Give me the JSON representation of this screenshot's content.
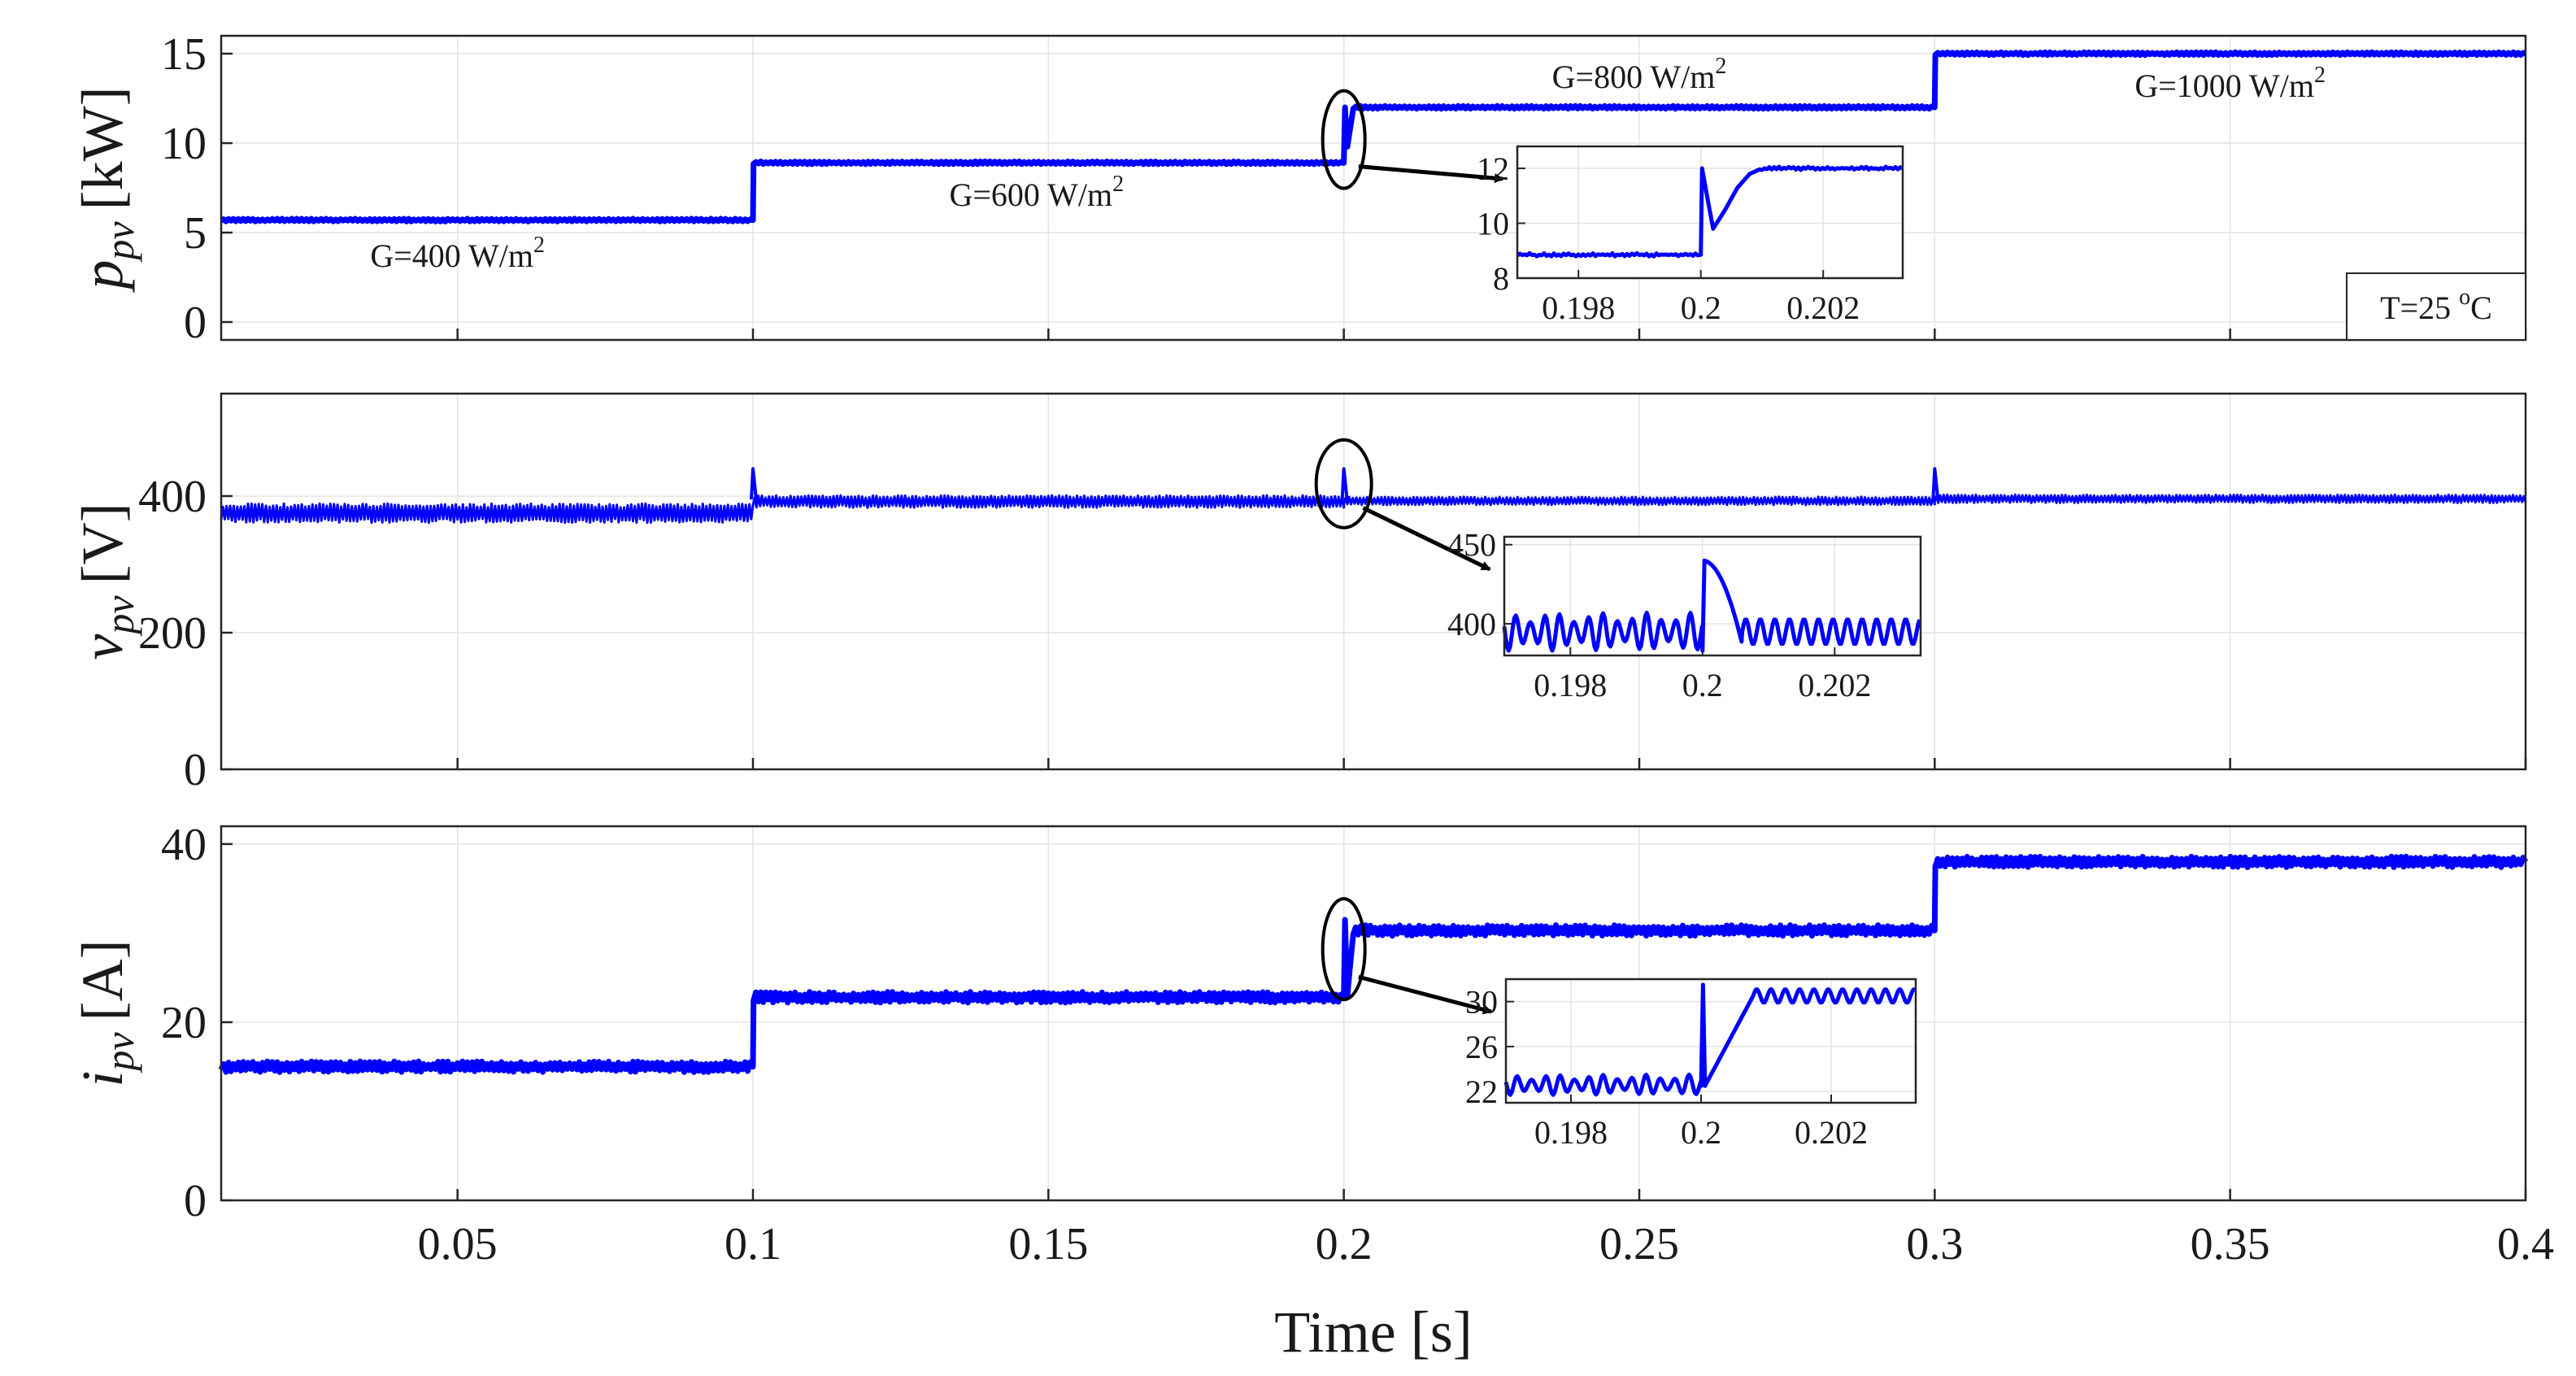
{
  "chart_data": [
    {
      "type": "line",
      "id": "power",
      "ylabel_symbol": "p",
      "ylabel_sub": "pv",
      "ylabel_unit": "[kW]",
      "xlim": [
        0.01,
        0.4
      ],
      "ylim": [
        -1,
        16
      ],
      "yticks": [
        0,
        5,
        10,
        15
      ],
      "xticks": [
        0.05,
        0.1,
        0.15,
        0.2,
        0.25,
        0.3,
        0.35,
        0.4
      ],
      "series": [
        {
          "name": "p_pv",
          "color": "#0000ff",
          "ripple": 0.08,
          "x": [
            0.01,
            0.0999,
            0.1,
            0.1001,
            0.1999,
            0.2,
            0.2002,
            0.2006,
            0.2016,
            0.2999,
            0.3,
            0.3001,
            0.4
          ],
          "y": [
            5.7,
            5.7,
            5.7,
            8.9,
            8.9,
            8.9,
            12.0,
            9.8,
            12.0,
            12.0,
            12.0,
            15.0,
            15.0
          ]
        }
      ],
      "annotations": [
        {
          "text": "G=400 W/m",
          "sup": "2",
          "x": 0.05,
          "y": 3.1
        },
        {
          "text": "G=600 W/m",
          "sup": "2",
          "x": 0.148,
          "y": 6.5
        },
        {
          "text": "G=800 W/m",
          "sup": "2",
          "x": 0.25,
          "y": 13.1
        },
        {
          "text": "G=1000 W/m",
          "sup": "2",
          "x": 0.35,
          "y": 12.6
        }
      ],
      "legend_box": {
        "text": "T=25 ",
        "sup": "o",
        "tail": "C",
        "position": "bottom-right"
      },
      "inset": {
        "xlim": [
          0.197,
          0.2033
        ],
        "ylim": [
          8,
          12.8
        ],
        "xticks": [
          0.198,
          0.2,
          0.202
        ],
        "yticks": [
          8,
          10,
          12
        ],
        "x": [
          0.197,
          0.19999,
          0.2,
          0.20002,
          0.2002,
          0.2004,
          0.2006,
          0.2008,
          0.201,
          0.2033
        ],
        "y": [
          8.85,
          8.85,
          8.85,
          12.0,
          9.8,
          10.5,
          11.3,
          11.8,
          12.0,
          12.0
        ],
        "ripple": 0.06
      },
      "zoom_marker": {
        "x": 0.2,
        "y": 10.2
      },
      "x_tick_labels_shown": false
    },
    {
      "type": "line",
      "id": "voltage",
      "ylabel_symbol": "v",
      "ylabel_sub": "pv",
      "ylabel_unit": "[V]",
      "xlim": [
        0.01,
        0.4
      ],
      "ylim": [
        0,
        550
      ],
      "yticks": [
        0,
        200,
        400
      ],
      "xticks": [
        0.05,
        0.1,
        0.15,
        0.2,
        0.25,
        0.3,
        0.35,
        0.4
      ],
      "series": [
        {
          "name": "v_pv",
          "color": "#0000ff",
          "segments": [
            {
              "x0": 0.01,
              "x1": 0.1,
              "center": 375,
              "ripple": 14
            },
            {
              "x0": 0.1,
              "x1": 0.2,
              "center": 392,
              "ripple": 9
            },
            {
              "x0": 0.2,
              "x1": 0.3,
              "center": 393,
              "ripple": 6
            },
            {
              "x0": 0.3,
              "x1": 0.4,
              "center": 396,
              "ripple": 6
            }
          ],
          "spikes": [
            {
              "x": 0.1,
              "y": 440
            },
            {
              "x": 0.2,
              "y": 440
            },
            {
              "x": 0.3,
              "y": 440
            }
          ]
        }
      ],
      "inset": {
        "xlim": [
          0.197,
          0.2033
        ],
        "ylim": [
          380,
          455
        ],
        "xticks": [
          0.198,
          0.2,
          0.202
        ],
        "yticks": [
          400,
          450
        ],
        "pre": {
          "center": 395,
          "amplitude": 12
        },
        "spike": {
          "x": 0.2,
          "peak": 440
        },
        "post": {
          "center": 395,
          "amplitude": 8
        }
      },
      "zoom_marker": {
        "x": 0.2,
        "y": 418
      },
      "x_tick_labels_shown": false
    },
    {
      "type": "line",
      "id": "current",
      "ylabel_symbol": "i",
      "ylabel_sub": "pv",
      "ylabel_unit": "[A]",
      "xlabel": "Time [s]",
      "xlim": [
        0.01,
        0.4
      ],
      "ylim": [
        0,
        42
      ],
      "yticks": [
        0,
        20,
        40
      ],
      "xticks": [
        0.05,
        0.1,
        0.15,
        0.2,
        0.25,
        0.3,
        0.35,
        0.4
      ],
      "x_tick_labels": [
        "0.05",
        "0.1",
        "0.15",
        "0.2",
        "0.25",
        "0.3",
        "0.35",
        "0.4"
      ],
      "series": [
        {
          "name": "i_pv",
          "color": "#0000ff",
          "ripple": 0.6,
          "x": [
            0.01,
            0.0999,
            0.1,
            0.1001,
            0.1999,
            0.2,
            0.2002,
            0.2006,
            0.2016,
            0.2999,
            0.3,
            0.3001,
            0.4
          ],
          "y": [
            15.0,
            15.0,
            15.0,
            22.8,
            22.8,
            22.8,
            31.5,
            23.0,
            30.3,
            30.3,
            30.3,
            38.0,
            38.0
          ]
        }
      ],
      "inset": {
        "xlim": [
          0.197,
          0.2033
        ],
        "ylim": [
          21,
          32
        ],
        "xticks": [
          0.198,
          0.2,
          0.202
        ],
        "yticks": [
          22,
          26,
          30
        ],
        "pre": {
          "center": 22.6,
          "amplitude": 0.9
        },
        "spike": {
          "x": 0.2,
          "peak": 31.5,
          "dip": 22.5
        },
        "post": {
          "center": 30.5,
          "amplitude": 0.6
        }
      },
      "zoom_marker": {
        "x": 0.2,
        "y": 28.2
      },
      "x_tick_labels_shown": true
    }
  ]
}
